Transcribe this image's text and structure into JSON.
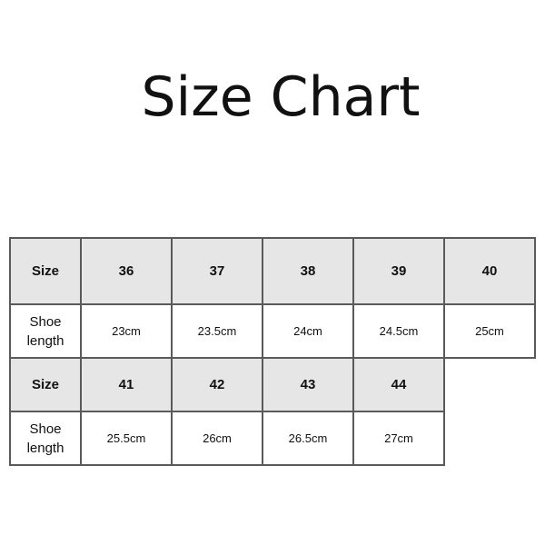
{
  "title": "Size Chart",
  "table": {
    "row_label_size": "Size",
    "row_label_length": "Shoe length",
    "blocks": [
      {
        "sizes": [
          "36",
          "37",
          "38",
          "39",
          "40"
        ],
        "lengths": [
          "23cm",
          "23.5cm",
          "24cm",
          "24.5cm",
          "25cm"
        ]
      },
      {
        "sizes": [
          "41",
          "42",
          "43",
          "44"
        ],
        "lengths": [
          "25.5cm",
          "26cm",
          "26.5cm",
          "27cm"
        ]
      }
    ]
  },
  "colors": {
    "header_fill": "#e6e6e6",
    "border": "#5a5a5a"
  }
}
